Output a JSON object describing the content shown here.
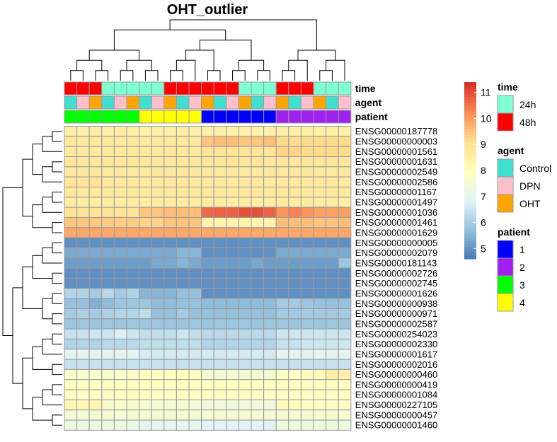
{
  "chart_data": {
    "type": "heatmap",
    "title": "OHT_outlier",
    "rows": [
      "ENSG00000187778",
      "ENSG00000000003",
      "ENSG00000001561",
      "ENSG00000001631",
      "ENSG00000002549",
      "ENSG00000002586",
      "ENSG00000001167",
      "ENSG00000001497",
      "ENSG00000001036",
      "ENSG00000001461",
      "ENSG00000001629",
      "ENSG00000000005",
      "ENSG00000002079",
      "ENSG00000181143",
      "ENSG00000002726",
      "ENSG00000002745",
      "ENSG00000001626",
      "ENSG00000000938",
      "ENSG00000000971",
      "ENSG00000002587",
      "ENSG00000254023",
      "ENSG00000002330",
      "ENSG00000001617",
      "ENSG00000002016",
      "ENSG00000000460",
      "ENSG00000000419",
      "ENSG00000001084",
      "ENSG00000227105",
      "ENSG00000000457",
      "ENSG00000001460"
    ],
    "columns": 23,
    "values": [
      [
        8.6,
        8.6,
        8.7,
        8.6,
        8.7,
        8.6,
        8.6,
        8.6,
        8.6,
        8.7,
        8.6,
        8.6,
        8.6,
        8.5,
        8.5,
        8.5,
        8.5,
        8.6,
        8.6,
        8.6,
        8.6,
        8.6,
        8.6
      ],
      [
        8.8,
        8.8,
        8.8,
        8.8,
        8.8,
        8.8,
        8.8,
        8.8,
        8.8,
        8.8,
        8.8,
        9.5,
        9.6,
        9.6,
        9.5,
        9.5,
        9.6,
        9.2,
        9.2,
        9.2,
        9.2,
        9.2,
        9.2
      ],
      [
        8.8,
        8.8,
        8.8,
        8.8,
        8.8,
        8.8,
        8.8,
        8.8,
        8.8,
        8.8,
        8.8,
        9.0,
        9.0,
        9.0,
        9.0,
        9.0,
        9.0,
        9.3,
        9.3,
        9.2,
        9.2,
        9.2,
        9.2
      ],
      [
        8.9,
        8.9,
        8.9,
        8.9,
        8.9,
        8.9,
        8.9,
        8.9,
        8.9,
        8.9,
        8.9,
        8.9,
        8.9,
        8.9,
        8.9,
        8.9,
        8.9,
        8.9,
        8.9,
        8.9,
        8.9,
        8.9,
        8.9
      ],
      [
        8.8,
        8.8,
        8.8,
        8.8,
        8.8,
        8.8,
        8.8,
        8.8,
        8.8,
        8.8,
        8.8,
        8.8,
        8.8,
        8.8,
        8.8,
        8.8,
        8.8,
        8.8,
        8.8,
        8.8,
        8.8,
        8.8,
        8.8
      ],
      [
        8.9,
        8.9,
        9.0,
        8.8,
        8.8,
        8.8,
        8.8,
        8.8,
        8.8,
        8.8,
        8.8,
        8.8,
        8.8,
        8.8,
        8.8,
        8.8,
        8.8,
        8.8,
        8.8,
        8.8,
        8.8,
        8.8,
        8.8
      ],
      [
        8.8,
        8.8,
        8.8,
        8.8,
        8.8,
        8.8,
        8.8,
        8.8,
        8.8,
        8.8,
        8.8,
        8.8,
        8.8,
        8.8,
        8.8,
        8.8,
        8.8,
        8.8,
        8.8,
        8.8,
        8.8,
        8.8,
        8.8
      ],
      [
        8.7,
        8.7,
        8.7,
        8.7,
        8.7,
        8.7,
        8.7,
        8.7,
        8.7,
        8.7,
        8.7,
        8.7,
        8.7,
        8.7,
        8.7,
        8.7,
        8.7,
        8.7,
        8.7,
        8.7,
        8.7,
        8.7,
        8.7
      ],
      [
        9.0,
        9.0,
        9.0,
        9.0,
        9.0,
        9.0,
        9.5,
        9.5,
        9.6,
        9.6,
        9.6,
        10.7,
        10.8,
        10.8,
        11.0,
        11.0,
        10.8,
        10.2,
        10.4,
        10.2,
        10.0,
        10.0,
        10.0
      ],
      [
        9.5,
        9.5,
        9.5,
        9.4,
        9.4,
        9.4,
        9.3,
        9.3,
        9.5,
        9.5,
        9.5,
        8.4,
        8.4,
        8.4,
        8.4,
        8.4,
        8.4,
        9.6,
        9.6,
        9.6,
        9.5,
        9.5,
        9.6
      ],
      [
        9.9,
        9.9,
        9.9,
        9.9,
        9.9,
        9.9,
        9.9,
        9.9,
        9.9,
        9.9,
        9.9,
        9.9,
        9.9,
        9.9,
        9.9,
        9.9,
        9.9,
        9.9,
        9.9,
        9.9,
        9.9,
        9.9,
        9.9
      ],
      [
        5.0,
        5.0,
        5.0,
        5.0,
        5.0,
        5.0,
        5.0,
        5.0,
        5.0,
        5.0,
        5.0,
        5.0,
        5.0,
        5.0,
        5.0,
        5.0,
        5.0,
        5.0,
        5.0,
        5.0,
        5.0,
        5.0,
        5.0
      ],
      [
        5.4,
        5.4,
        5.4,
        5.4,
        5.4,
        5.4,
        5.4,
        5.4,
        5.4,
        5.6,
        5.6,
        5.0,
        5.0,
        5.0,
        5.0,
        5.0,
        5.0,
        5.4,
        5.4,
        5.4,
        5.4,
        5.4,
        5.4
      ],
      [
        5.2,
        5.2,
        5.2,
        5.2,
        5.2,
        5.2,
        5.2,
        5.4,
        5.4,
        5.6,
        5.4,
        5.2,
        5.2,
        5.2,
        5.2,
        5.4,
        5.2,
        5.2,
        5.2,
        5.2,
        5.2,
        5.2,
        5.9
      ],
      [
        5.0,
        5.0,
        5.0,
        5.0,
        5.0,
        5.0,
        5.0,
        5.0,
        5.0,
        5.0,
        5.0,
        5.0,
        5.0,
        5.0,
        5.0,
        5.0,
        5.0,
        5.0,
        5.0,
        5.0,
        5.0,
        5.0,
        5.0
      ],
      [
        5.0,
        5.0,
        5.0,
        5.0,
        5.0,
        5.0,
        5.0,
        5.0,
        5.0,
        5.0,
        5.0,
        5.0,
        5.0,
        5.0,
        5.0,
        5.0,
        5.0,
        5.0,
        5.0,
        5.0,
        5.0,
        5.0,
        5.0
      ],
      [
        6.2,
        6.2,
        6.0,
        6.3,
        6.0,
        6.2,
        5.6,
        5.6,
        5.6,
        5.8,
        5.8,
        5.0,
        5.0,
        5.0,
        5.0,
        5.0,
        5.0,
        5.0,
        5.0,
        5.0,
        5.0,
        5.0,
        5.0
      ],
      [
        5.8,
        5.8,
        5.5,
        5.7,
        5.9,
        5.9,
        5.9,
        5.7,
        5.7,
        5.8,
        5.8,
        5.7,
        5.7,
        5.7,
        5.7,
        5.7,
        5.7,
        6.0,
        6.0,
        5.9,
        5.8,
        5.8,
        5.8
      ],
      [
        6.0,
        6.1,
        6.0,
        6.1,
        6.2,
        6.2,
        6.4,
        5.8,
        5.8,
        6.0,
        5.8,
        5.8,
        5.8,
        5.8,
        5.8,
        5.8,
        5.8,
        6.0,
        6.0,
        6.0,
        6.0,
        6.0,
        6.0
      ],
      [
        5.9,
        5.9,
        5.9,
        5.9,
        5.9,
        5.9,
        5.9,
        5.9,
        5.9,
        5.9,
        5.9,
        5.9,
        5.9,
        5.9,
        5.9,
        5.9,
        5.9,
        5.9,
        5.9,
        5.9,
        5.9,
        5.9,
        5.9
      ],
      [
        6.5,
        6.5,
        6.6,
        6.6,
        6.8,
        6.6,
        6.4,
        6.4,
        6.4,
        6.6,
        6.4,
        6.3,
        6.3,
        6.3,
        6.3,
        6.3,
        6.3,
        6.6,
        6.6,
        6.6,
        6.6,
        6.6,
        6.6
      ],
      [
        6.2,
        6.2,
        6.2,
        6.3,
        6.3,
        6.3,
        6.4,
        6.4,
        6.4,
        6.4,
        6.4,
        6.2,
        6.2,
        6.2,
        6.2,
        6.2,
        6.2,
        6.5,
        6.5,
        6.6,
        6.6,
        6.6,
        6.6
      ],
      [
        7.0,
        7.0,
        7.0,
        7.0,
        7.0,
        7.0,
        6.7,
        6.7,
        6.7,
        6.7,
        6.7,
        6.7,
        6.7,
        6.7,
        6.7,
        6.7,
        6.7,
        7.0,
        7.0,
        7.0,
        7.0,
        7.0,
        7.0
      ],
      [
        6.5,
        6.5,
        6.5,
        6.5,
        6.5,
        6.5,
        6.5,
        6.5,
        6.5,
        6.5,
        6.5,
        6.5,
        6.5,
        6.5,
        6.5,
        6.5,
        6.5,
        6.5,
        6.5,
        6.5,
        6.5,
        6.5,
        6.5
      ],
      [
        7.8,
        7.8,
        7.8,
        7.8,
        7.8,
        7.8,
        8.0,
        8.0,
        8.0,
        8.0,
        8.0,
        7.6,
        7.6,
        7.6,
        7.6,
        7.6,
        7.6,
        7.9,
        7.9,
        8.1,
        8.1,
        8.6,
        8.5
      ],
      [
        8.0,
        8.0,
        8.0,
        8.0,
        8.0,
        8.0,
        8.0,
        8.0,
        8.0,
        8.0,
        8.0,
        8.0,
        8.0,
        8.0,
        8.0,
        8.0,
        8.0,
        8.0,
        8.0,
        8.0,
        8.0,
        8.0,
        8.0
      ],
      [
        7.9,
        7.9,
        7.9,
        7.9,
        7.9,
        7.9,
        7.9,
        7.9,
        7.9,
        7.9,
        7.9,
        7.9,
        7.9,
        7.9,
        7.9,
        7.9,
        7.9,
        7.9,
        7.9,
        7.9,
        7.9,
        7.9,
        7.9
      ],
      [
        8.3,
        8.3,
        8.3,
        7.8,
        7.8,
        7.8,
        7.6,
        7.6,
        7.6,
        7.6,
        7.6,
        7.4,
        7.4,
        7.4,
        7.4,
        7.4,
        7.4,
        8.1,
        8.1,
        7.9,
        7.9,
        7.9,
        7.9
      ],
      [
        7.6,
        7.6,
        7.6,
        7.6,
        7.6,
        7.6,
        7.6,
        7.6,
        7.6,
        7.6,
        7.6,
        7.6,
        7.6,
        7.6,
        7.6,
        7.6,
        7.6,
        7.6,
        7.6,
        7.6,
        7.6,
        7.6,
        7.6
      ],
      [
        7.3,
        7.3,
        7.3,
        7.3,
        7.3,
        7.3,
        7.1,
        7.1,
        7.1,
        7.1,
        7.1,
        6.9,
        6.9,
        6.9,
        6.9,
        6.9,
        6.9,
        7.4,
        7.4,
        7.4,
        7.4,
        7.4,
        7.4
      ]
    ],
    "color_scale": {
      "min": 4.6,
      "max": 11.4,
      "ticks": [
        5,
        6,
        7,
        8,
        9,
        10,
        11
      ],
      "colors": [
        "#4575b4",
        "#91bfdb",
        "#e0f3f8",
        "#ffffbf",
        "#fee090",
        "#fc8d59",
        "#d73027"
      ]
    },
    "annotations": [
      {
        "name": "time",
        "values": [
          "48h",
          "48h",
          "48h",
          "24h",
          "24h",
          "24h",
          "24h",
          "24h",
          "48h",
          "48h",
          "48h",
          "48h",
          "48h",
          "48h",
          "24h",
          "24h",
          "24h",
          "48h",
          "48h",
          "48h",
          "24h",
          "24h",
          "24h"
        ]
      },
      {
        "name": "agent",
        "values": [
          "Control",
          "DPN",
          "OHT",
          "Control",
          "DPN",
          "OHT",
          "Control",
          "DPN",
          "OHT",
          "Control",
          "DPN",
          "OHT",
          "Control",
          "DPN",
          "OHT",
          "Control",
          "DPN",
          "OHT",
          "Control",
          "DPN",
          "OHT",
          "Control",
          "DPN"
        ]
      },
      {
        "name": "patient",
        "values": [
          "3",
          "3",
          "3",
          "3",
          "3",
          "3",
          "4",
          "4",
          "4",
          "4",
          "4",
          "1",
          "1",
          "1",
          "1",
          "1",
          "1",
          "2",
          "2",
          "2",
          "2",
          "2",
          "2"
        ]
      }
    ],
    "legends": [
      {
        "title": "time",
        "items": [
          {
            "label": "24h",
            "color": "#7fffd4"
          },
          {
            "label": "48h",
            "color": "#ff0000"
          }
        ]
      },
      {
        "title": "agent",
        "items": [
          {
            "label": "Control",
            "color": "#40e0d0"
          },
          {
            "label": "DPN",
            "color": "#ffc0cb"
          },
          {
            "label": "OHT",
            "color": "#ffa500"
          }
        ]
      },
      {
        "title": "patient",
        "items": [
          {
            "label": "1",
            "color": "#0000ff"
          },
          {
            "label": "2",
            "color": "#a020f0"
          },
          {
            "label": "3",
            "color": "#00ff00"
          },
          {
            "label": "4",
            "color": "#ffff00"
          }
        ]
      }
    ]
  }
}
